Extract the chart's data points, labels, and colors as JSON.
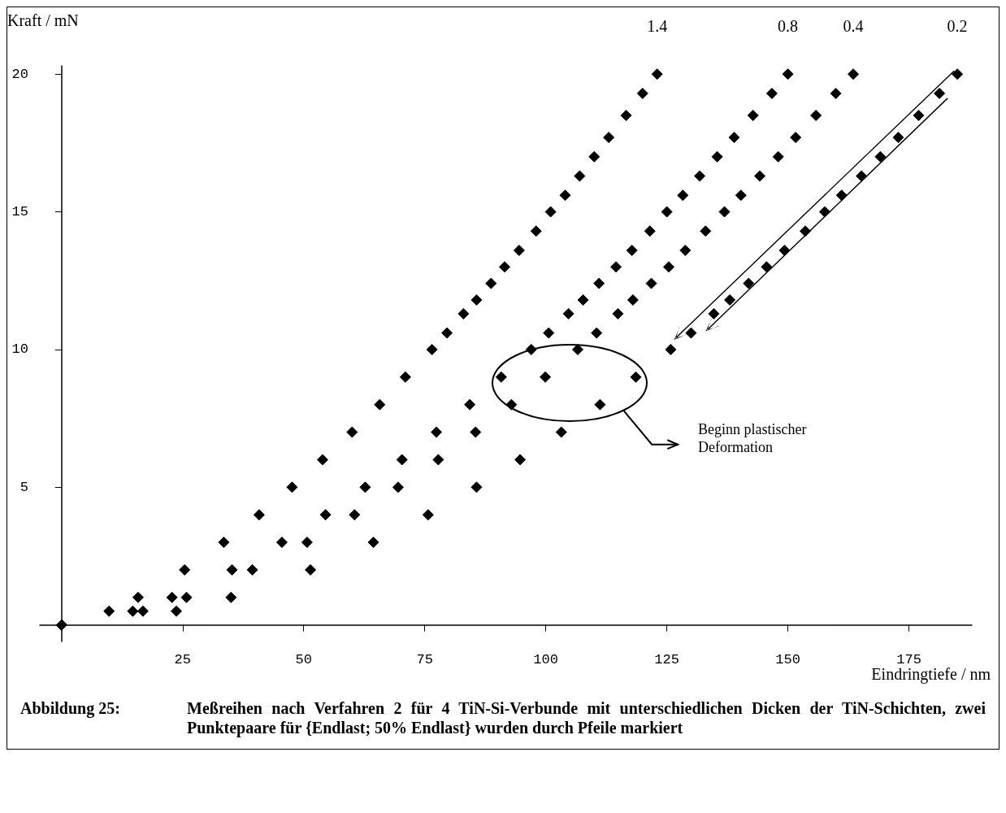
{
  "chart_data": {
    "type": "scatter",
    "xlabel": "Eindringtiefe / nm",
    "ylabel": "Kraft / mN",
    "xlim": [
      -4.5,
      188
    ],
    "ylim": [
      -0.6,
      20.3
    ],
    "xticks": [
      25,
      50,
      75,
      100,
      125,
      150,
      175
    ],
    "yticks": [
      5,
      10,
      15,
      20
    ],
    "marker": "diamond",
    "grid": false,
    "series": [
      {
        "name": "1.4",
        "color": "#000000",
        "x": [
          123,
          120,
          116.6,
          113,
          110,
          107,
          104,
          101,
          98,
          94.5,
          91.5,
          88.7,
          85.7,
          83,
          79.6,
          76.5,
          71,
          65.7,
          60,
          53.9,
          47.6,
          40.8,
          33.5,
          25.4,
          15.8,
          9.8,
          0
        ],
        "values": [
          20,
          19.3,
          18.5,
          17.7,
          17,
          16.3,
          15.6,
          15,
          14.3,
          13.6,
          13,
          12.4,
          11.8,
          11.3,
          10.6,
          10,
          9,
          8,
          7,
          6,
          5,
          4,
          3,
          2,
          1,
          0.5,
          0
        ]
      },
      {
        "name": "0.8",
        "color": "#000000",
        "x": [
          150,
          146.7,
          142.8,
          138.9,
          135.4,
          131.8,
          128.3,
          125,
          121.5,
          117.8,
          114.5,
          111,
          107.7,
          104.7,
          100.6,
          97,
          90.8,
          84.3,
          77.4,
          70.3,
          62.7,
          54.5,
          45.5,
          35.2,
          22.8,
          14.7,
          0
        ],
        "values": [
          20,
          19.3,
          18.5,
          17.7,
          17,
          16.3,
          15.6,
          15,
          14.3,
          13.6,
          13,
          12.4,
          11.8,
          11.3,
          10.6,
          10,
          9,
          8,
          7,
          6,
          5,
          4,
          3,
          2,
          1,
          0.5,
          0
        ]
      },
      {
        "name": "0.4",
        "color": "#000000",
        "x": [
          163.5,
          159.9,
          155.8,
          151.6,
          148,
          144.2,
          140.3,
          136.9,
          133,
          128.8,
          125.4,
          121.8,
          118,
          114.9,
          110.5,
          106.6,
          99.9,
          92.9,
          85.5,
          77.8,
          69.5,
          60.5,
          50.7,
          39.4,
          25.8,
          16.8,
          0
        ],
        "values": [
          20,
          19.3,
          18.5,
          17.7,
          17,
          16.3,
          15.6,
          15,
          14.3,
          13.6,
          13,
          12.4,
          11.8,
          11.3,
          10.6,
          10,
          9,
          8,
          7,
          6,
          5,
          4,
          3,
          2,
          1,
          0.5,
          0
        ]
      },
      {
        "name": "0.2",
        "color": "#000000",
        "x": [
          185,
          181.3,
          177,
          172.8,
          169.1,
          165.2,
          161.1,
          157.6,
          153.6,
          149.3,
          145.6,
          141.9,
          138,
          134.7,
          130,
          125.8,
          118.6,
          111.2,
          103.2,
          94.7,
          85.7,
          75.7,
          64.4,
          51.4,
          35,
          23.7,
          0
        ],
        "values": [
          20,
          19.3,
          18.5,
          17.7,
          17,
          16.3,
          15.6,
          15,
          14.3,
          13.6,
          13,
          12.4,
          11.8,
          11.3,
          10.6,
          10,
          9,
          8,
          7,
          6,
          5,
          4,
          3,
          2,
          1,
          0.5,
          0
        ]
      }
    ],
    "annotations": [
      "Beginn plastischer Deformation",
      "Abbildung 25:",
      "Meßreihen nach Verfahren 2 für 4 TiN-Si-Verbunde mit unterschiedlichen Dicken der TiN-Schichten, zwei Punktepaare für {Endlast; 50% Endlast} wurden durch Pfeile markiert"
    ]
  }
}
